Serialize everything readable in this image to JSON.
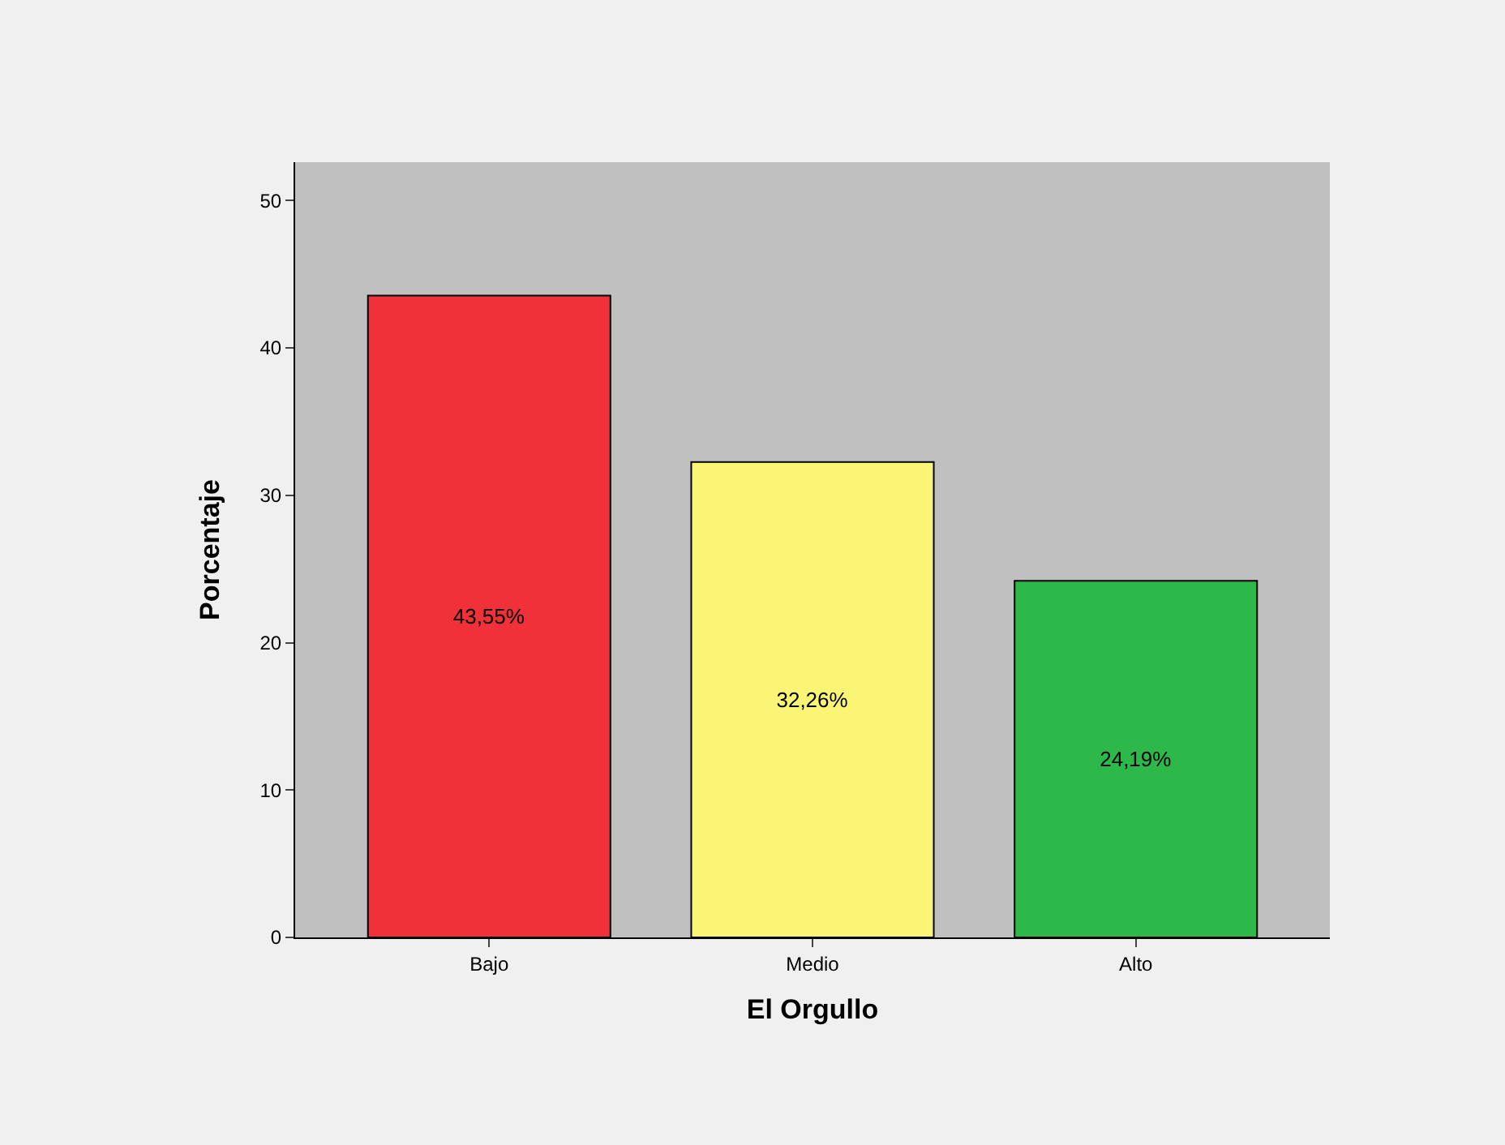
{
  "chart_data": {
    "type": "bar",
    "xlabel": "El Orgullo",
    "ylabel": "Porcentaje",
    "categories": [
      "Bajo",
      "Medio",
      "Alto"
    ],
    "values": [
      43.55,
      32.26,
      24.19
    ],
    "colors": [
      "#f0313a",
      "#faf574",
      "#2db84a"
    ],
    "value_labels": [
      "43,55%",
      "32,26%",
      "24,19%"
    ],
    "ylim": [
      0,
      52.6
    ],
    "yticks": [
      0,
      10,
      20,
      30,
      40,
      50
    ],
    "grid": false
  }
}
